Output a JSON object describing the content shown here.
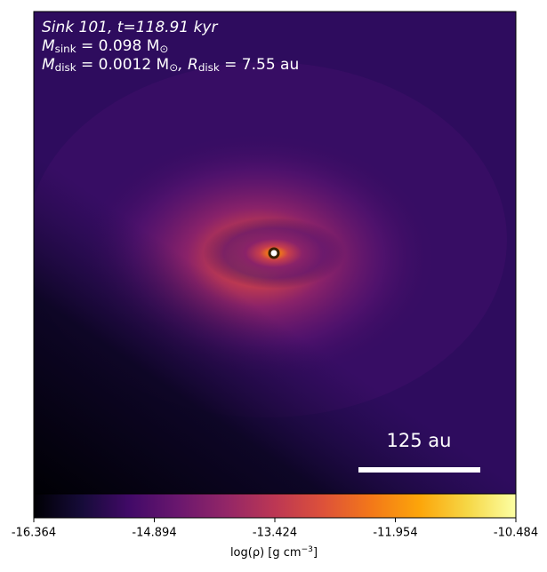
{
  "chart_data": {
    "type": "density-map",
    "title_lines": [
      [
        "Sink 101, t=118.91 kyr"
      ],
      [
        "M",
        "sink",
        " = 0.098 M",
        "⊙"
      ],
      [
        "M",
        "disk",
        " = 0.0012 M",
        "⊙",
        ", R",
        "disk",
        " = 7.55 au"
      ]
    ],
    "scale_bar_label": "125 au",
    "colorbar_label": [
      "log(ρ) [g cm",
      "−3",
      "]"
    ],
    "clim": [
      -16.364,
      -10.484
    ],
    "cticks": [
      -16.364,
      -14.894,
      -13.424,
      -11.954,
      -10.484
    ],
    "colormap": "inferno"
  }
}
